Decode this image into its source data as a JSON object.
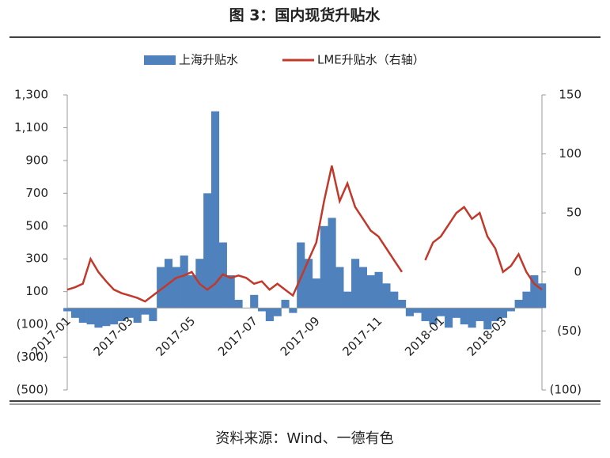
{
  "chart_data": {
    "type": "combo",
    "title": "图 3：国内现货升贴水",
    "source": "资料来源：Wind、一德有色",
    "categories": [
      "2017-01",
      null,
      null,
      null,
      null,
      null,
      null,
      null,
      "2017-03",
      null,
      null,
      null,
      null,
      null,
      null,
      null,
      "2017-05",
      null,
      null,
      null,
      null,
      null,
      null,
      null,
      "2017-07",
      null,
      null,
      null,
      null,
      null,
      null,
      null,
      "2017-09",
      null,
      null,
      null,
      null,
      null,
      null,
      null,
      "2017-11",
      null,
      null,
      null,
      null,
      null,
      null,
      null,
      "2018-01",
      null,
      null,
      null,
      null,
      null,
      null,
      null,
      "2018-03",
      null,
      null,
      null,
      null,
      null
    ],
    "series": [
      {
        "name": "上海升贴水",
        "type": "bar",
        "color": "#4f81bd",
        "values": [
          -20,
          -60,
          -90,
          -100,
          -120,
          -110,
          -100,
          -80,
          -60,
          -90,
          -40,
          -80,
          250,
          300,
          250,
          320,
          200,
          300,
          700,
          1200,
          400,
          200,
          50,
          0,
          80,
          -20,
          -80,
          -50,
          50,
          -30,
          400,
          300,
          180,
          500,
          550,
          250,
          100,
          300,
          250,
          200,
          220,
          150,
          100,
          50,
          -50,
          -30,
          -80,
          -100,
          -50,
          -120,
          -60,
          -100,
          -120,
          -80,
          -130,
          -80,
          -60,
          -20,
          50,
          100,
          200,
          150
        ]
      },
      {
        "name": "LME升贴水（右轴）",
        "type": "line",
        "axis": "y2",
        "color": "#c0392b",
        "values": [
          -15,
          -13,
          -10,
          11,
          0,
          -8,
          -15,
          -18,
          -20,
          -22,
          -25,
          -20,
          -15,
          -10,
          -5,
          -3,
          0,
          -10,
          -15,
          -10,
          -2,
          -5,
          -3,
          -5,
          -10,
          -8,
          -15,
          -10,
          -15,
          -20,
          -5,
          10,
          25,
          60,
          90,
          60,
          75,
          55,
          45,
          35,
          30,
          20,
          10,
          0,
          null,
          null,
          10,
          25,
          30,
          40,
          50,
          55,
          45,
          50,
          30,
          20,
          0,
          5,
          15,
          0,
          -10,
          -15
        ]
      }
    ],
    "ylim": [
      -500,
      1300
    ],
    "yticks": [
      {
        "value": 1300,
        "label": "1,300"
      },
      {
        "value": 1100,
        "label": "1,100"
      },
      900,
      700,
      500,
      300,
      100,
      {
        "value": -100,
        "label": "(100)"
      },
      {
        "value": -300,
        "label": "(300)"
      },
      {
        "value": -500,
        "label": "(500)"
      }
    ],
    "y2lim": [
      -100,
      150
    ],
    "y2ticks": [
      150,
      100,
      50,
      0,
      {
        "value": -50,
        "label": "(50)"
      },
      {
        "value": -100,
        "label": "(100)"
      }
    ],
    "negative_tick_color": "#c00000",
    "legend": "top"
  }
}
